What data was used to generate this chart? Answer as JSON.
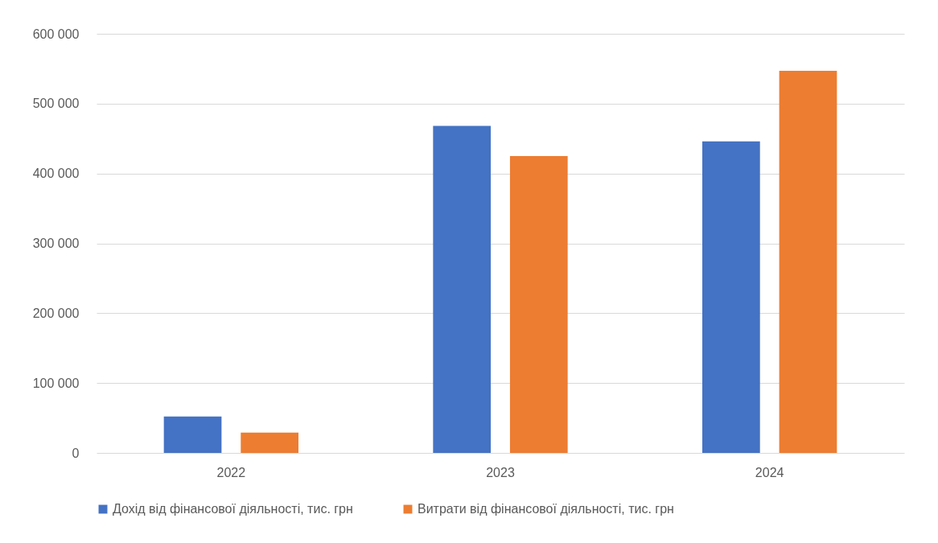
{
  "chart_data": {
    "type": "bar",
    "categories": [
      "2022",
      "2023",
      "2024"
    ],
    "series": [
      {
        "name": "Дохід від фінансової діяльності, тис. грн",
        "color": "#4472c4",
        "values": [
          52000,
          468000,
          446000
        ]
      },
      {
        "name": "Витрати від фінансової діяльності, тис. грн",
        "color": "#ed7d31",
        "values": [
          29000,
          425000,
          547000
        ]
      }
    ],
    "ylim": [
      0,
      600000
    ],
    "yticks": [
      {
        "value": 0,
        "label": "0"
      },
      {
        "value": 100000,
        "label": "100 000"
      },
      {
        "value": 200000,
        "label": "200 000"
      },
      {
        "value": 300000,
        "label": "300 000"
      },
      {
        "value": 400000,
        "label": "400 000"
      },
      {
        "value": 500000,
        "label": "500 000"
      },
      {
        "value": 600000,
        "label": "600 000"
      }
    ],
    "grid": "y",
    "legend": "bottom"
  }
}
